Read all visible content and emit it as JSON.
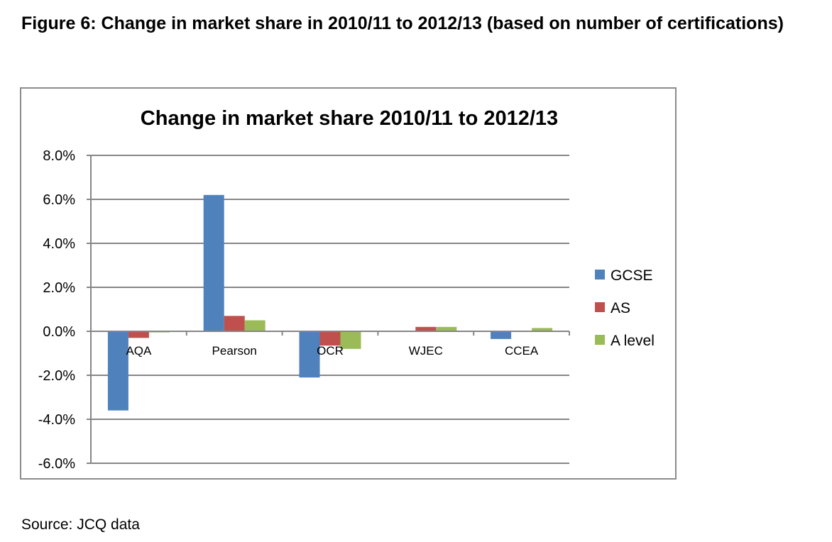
{
  "caption": "Figure 6: Change in market share in 2010/11 to 2012/13 (based on number of certifications)",
  "source": "Source: JCQ data",
  "chart_data": {
    "type": "bar",
    "title": "Change in market share 2010/11 to 2012/13",
    "categories": [
      "AQA",
      "Pearson",
      "OCR",
      "WJEC",
      "CCEA"
    ],
    "series": [
      {
        "name": "GCSE",
        "color": "#4f81bd",
        "values": [
          -3.6,
          6.2,
          -2.1,
          -0.02,
          -0.35
        ]
      },
      {
        "name": "AS",
        "color": "#c0504d",
        "values": [
          -0.3,
          0.7,
          -0.65,
          0.2,
          0.02
        ]
      },
      {
        "name": "A level",
        "color": "#9bbb59",
        "values": [
          -0.05,
          0.5,
          -0.8,
          0.2,
          0.15
        ]
      }
    ],
    "yticks": [
      "8.0%",
      "6.0%",
      "4.0%",
      "2.0%",
      "0.0%",
      "-2.0%",
      "-4.0%",
      "-6.0%"
    ],
    "ylim": [
      -6,
      8
    ],
    "grid": true,
    "legend": "right"
  }
}
